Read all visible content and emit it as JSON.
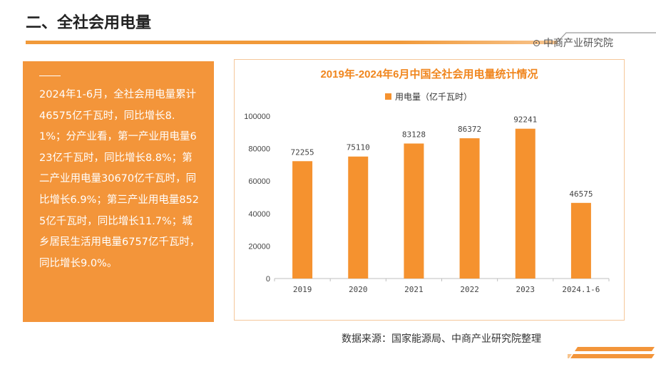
{
  "page": {
    "title": "二、全社会用电量",
    "brand": "中商产业研究院",
    "panel_text": "2024年1-6月，全社会用电量累计46575亿千瓦时，同比增长8.1%；分产业看，第一产业用电量623亿千瓦时，同比增长8.8%；第二产业用电量30670亿千瓦时，同比增长6.9%；第三产业用电量8525亿千瓦时，同比增长11.7%；城乡居民生活用电量6757亿千瓦时，同比增长9.0%。",
    "source": "数据来源：国家能源局、中商产业研究院整理"
  },
  "colors": {
    "accent": "#f3953a",
    "bar": "#f5922f",
    "title_text": "#f0861e"
  },
  "chart_data": {
    "type": "bar",
    "title": "2019年-2024年6月中国全社会用电量统计情况",
    "categories": [
      "2019",
      "2020",
      "2021",
      "2022",
      "2023",
      "2024.1-6"
    ],
    "series": [
      {
        "name": "用电量（亿千瓦时）",
        "values": [
          72255,
          75110,
          83128,
          86372,
          92241,
          46575
        ]
      }
    ],
    "ylim": [
      0,
      100000
    ],
    "yticks": [
      0,
      20000,
      40000,
      60000,
      80000,
      100000
    ],
    "legend": "top",
    "grid": false
  }
}
